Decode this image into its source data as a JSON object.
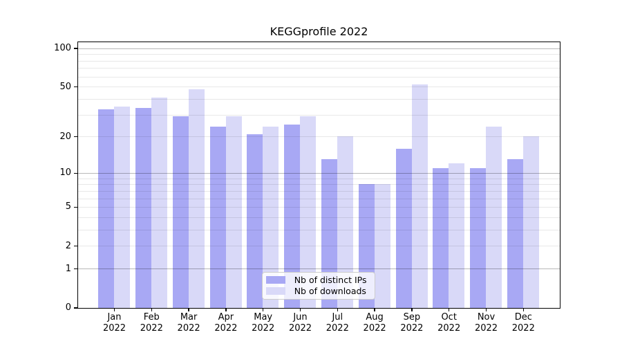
{
  "title": "KEGGprofile 2022",
  "chart_data": {
    "type": "bar",
    "title": "KEGGprofile 2022",
    "categories": [
      "Jan",
      "Feb",
      "Mar",
      "Apr",
      "May",
      "Jun",
      "Jul",
      "Aug",
      "Sep",
      "Oct",
      "Nov",
      "Dec"
    ],
    "category_sublabel": "2022",
    "series": [
      {
        "name": "Nb of distinct IPs",
        "color": "#a8a8f4",
        "values": [
          33,
          34,
          29,
          24,
          21,
          25,
          13,
          8,
          16,
          11,
          11,
          13
        ]
      },
      {
        "name": "Nb of downloads",
        "color": "#d9d9f8",
        "values": [
          35,
          41,
          48,
          29,
          24,
          29,
          20,
          8,
          52,
          12,
          24,
          20
        ]
      }
    ],
    "xlabel": "",
    "ylabel": "",
    "yscale": "log1p",
    "ylim": [
      0,
      112
    ],
    "yticks": [
      0,
      1,
      2,
      5,
      10,
      20,
      50,
      100
    ],
    "minor_gridlines": [
      3,
      4,
      6,
      7,
      8,
      9,
      30,
      40,
      60,
      70,
      80,
      90
    ],
    "grid": true,
    "legend_position": "lower-center",
    "colors": {
      "power_gridline": "rgba(0,0,0,0.28)",
      "minor_gridline": "rgba(0,0,0,0.09)",
      "axis": "#000000",
      "background": "#ffffff"
    }
  }
}
